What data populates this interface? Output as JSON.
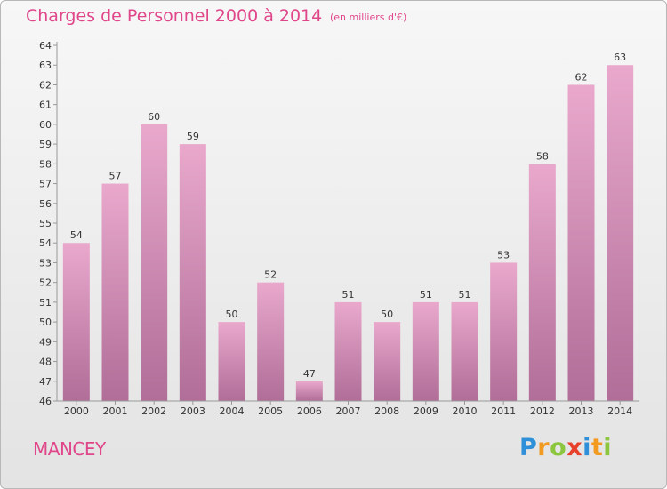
{
  "header": {
    "title": "Charges de Personnel 2000 à 2014",
    "subtitle": "(en milliers d'€)"
  },
  "footer": {
    "commune": "MANCEY",
    "brand_letters": [
      {
        "ch": "P",
        "color": "#2f8fd8"
      },
      {
        "ch": "r",
        "color": "#f29a1f"
      },
      {
        "ch": "o",
        "color": "#8cc63f"
      },
      {
        "ch": "x",
        "color": "#e8402a"
      },
      {
        "ch": "i",
        "color": "#2f8fd8"
      },
      {
        "ch": "t",
        "color": "#f29a1f"
      },
      {
        "ch": "i",
        "color": "#8cc63f"
      }
    ]
  },
  "chart_data": {
    "type": "bar",
    "title": "Charges de Personnel 2000 à 2014",
    "subtitle": "(en milliers d'€)",
    "categories": [
      "2000",
      "2001",
      "2002",
      "2003",
      "2004",
      "2005",
      "2006",
      "2007",
      "2008",
      "2009",
      "2010",
      "2011",
      "2012",
      "2013",
      "2014"
    ],
    "values": [
      54,
      57,
      60,
      59,
      50,
      52,
      47,
      51,
      50,
      51,
      51,
      53,
      58,
      62,
      63
    ],
    "ylim": [
      46,
      64
    ],
    "yticks": [
      46,
      47,
      48,
      49,
      50,
      51,
      52,
      53,
      54,
      55,
      56,
      57,
      58,
      59,
      60,
      61,
      62,
      63,
      64
    ],
    "grid": false,
    "bar_color": "#e9a8cc",
    "bar_color_dark": "#b06e98"
  }
}
